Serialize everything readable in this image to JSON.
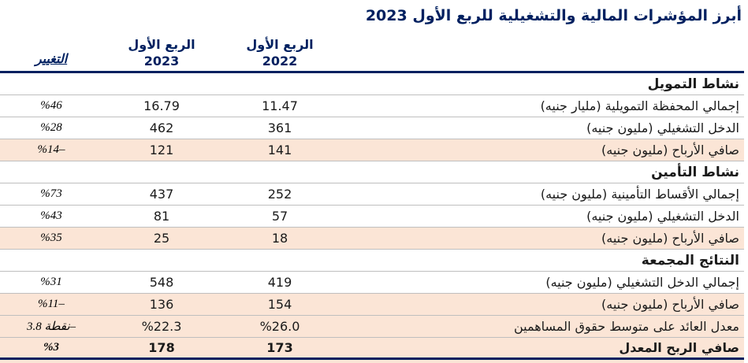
{
  "title": "أبرز المؤشرات المالية والتشغيلية للربع الأول 2023",
  "columns": {
    "change": "التغيير",
    "q1_2023_line1": "الربع الأول",
    "q1_2023_line2": "2023",
    "q1_2022_line1": "الربع الأول",
    "q1_2022_line2": "2022"
  },
  "sections": [
    {
      "header": "نشاط التمويل",
      "rows": [
        {
          "label": "إجمالي المحفظة التمويلية (مليار جنيه)",
          "y2023": "16.79",
          "y2022": "11.47",
          "change": "%46",
          "highlight": false
        },
        {
          "label": "الدخل التشغيلي (مليون جنيه)",
          "y2023": "462",
          "y2022": "361",
          "change": "%28",
          "highlight": false
        },
        {
          "label": "صافي الأرباح (مليون جنيه)",
          "y2023": "121",
          "y2022": "141",
          "change": "%14–",
          "highlight": true
        }
      ]
    },
    {
      "header": "نشاط التأمين",
      "rows": [
        {
          "label": "إجمالي الأقساط التأمينية (مليون جنيه)",
          "y2023": "437",
          "y2022": "252",
          "change": "%73",
          "highlight": false
        },
        {
          "label": "الدخل التشغيلي (مليون جنيه)",
          "y2023": "81",
          "y2022": "57",
          "change": "%43",
          "highlight": false
        },
        {
          "label": "صافي الأرباح (مليون جنيه)",
          "y2023": "25",
          "y2022": "18",
          "change": "%35",
          "highlight": true
        }
      ]
    },
    {
      "header": "النتائج المجمعة",
      "rows": [
        {
          "label": "إجمالي الدخل التشغيلي (مليون جنيه)",
          "y2023": "548",
          "y2022": "419",
          "change": "%31",
          "highlight": false
        },
        {
          "label": "صافي الأرباح (مليون جنيه)",
          "y2023": "136",
          "y2022": "154",
          "change": "%11–",
          "highlight": true
        },
        {
          "label": "معدل العائد على متوسط حقوق المساهمين",
          "y2023": "%22.3",
          "y2022": "%26.0",
          "change": "نقطة 3.8–",
          "highlight": true
        }
      ]
    }
  ],
  "total_row": {
    "label": "صافي الربح المعدل",
    "y2023": "178",
    "y2022": "173",
    "change": "%3",
    "highlight": true
  },
  "colors": {
    "accent_navy": "#002060",
    "highlight_peach": "#FBE5D6",
    "row_border_gray": "#BFBFBF"
  }
}
